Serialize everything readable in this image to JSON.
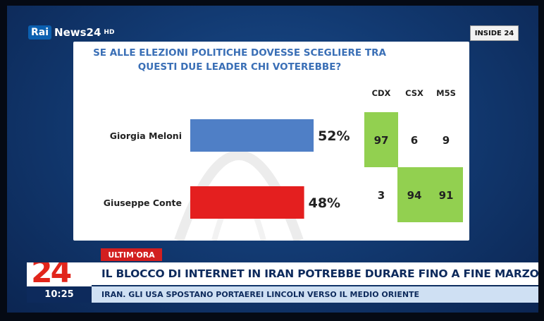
{
  "broadcaster": {
    "logo_brand": "Rai",
    "logo_channel": "News24",
    "logo_suffix": "HD",
    "program": "INSIDE 24",
    "channel_number": "24",
    "clock": "10:25"
  },
  "ticker": {
    "tag": "ULTIM'ORA",
    "headline": "IL BLOCCO DI INTERNET IN IRAN POTREBBE DURARE FINO A FINE MARZO",
    "subline": "IRAN.  GLI USA SPOSTANO PORTAEREI LINCOLN VERSO IL MEDIO ORIENTE"
  },
  "colors": {
    "meloni_bar": "#4f7fc6",
    "conte_bar": "#e41f1f",
    "highlight": "#92d050",
    "title_blue": "#3a6fb6",
    "text": "#222222"
  },
  "chart_data": {
    "type": "bar",
    "orientation": "horizontal",
    "title": "SE ALLE ELEZIONI POLITICHE DOVESSE SCEGLIERE TRA QUESTI DUE LEADER CHI VOTEREBBE?",
    "title_lines": [
      "SE ALLE ELEZIONI POLITICHE DOVESSE SCEGLIERE TRA",
      "QUESTI DUE LEADER CHI VOTEREBBE?"
    ],
    "categories": [
      "Giorgia Meloni",
      "Giuseppe Conte"
    ],
    "values": [
      52,
      48
    ],
    "value_labels": [
      "52%",
      "48%"
    ],
    "unit": "%",
    "xlim": [
      0,
      60
    ],
    "grid": false,
    "breakdown": {
      "columns": [
        "CDX",
        "CSX",
        "M5S"
      ],
      "rows": [
        {
          "candidate": "Giorgia Meloni",
          "values": [
            97,
            6,
            9
          ],
          "highlight": [
            true,
            false,
            false
          ]
        },
        {
          "candidate": "Giuseppe Conte",
          "values": [
            3,
            94,
            91
          ],
          "highlight": [
            false,
            true,
            true
          ]
        }
      ]
    }
  }
}
